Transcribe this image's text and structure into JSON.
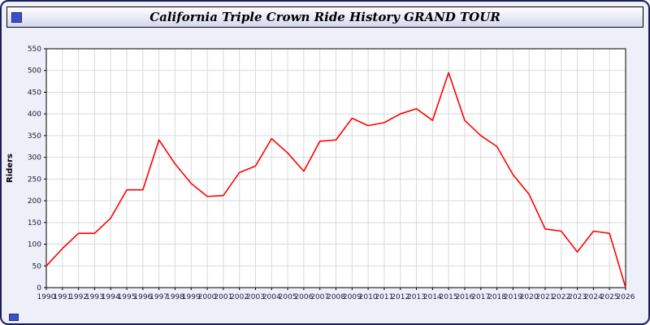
{
  "window": {
    "title": "California Triple Crown Ride History GRAND TOUR"
  },
  "colors": {
    "frame_border": "#1b1b5e",
    "frame_bg": "#eef0f9",
    "titlebar_gradient_top": "#ffffff",
    "titlebar_gradient_bottom": "#d3d7ee",
    "corner_square": "#3a50c8",
    "plot_bg": "#ffffff",
    "axis": "#000000",
    "tick_label": "#1a1a3a"
  },
  "chart_data": {
    "type": "line",
    "title": "California Triple Crown Ride History GRAND TOUR",
    "xlabel": "",
    "ylabel": "Riders",
    "ylim": [
      0,
      550
    ],
    "ytick_step": 50,
    "grid": true,
    "grid_color": "#d9d9d9",
    "line_color": "#ff0000",
    "legend": "none",
    "x": [
      1990,
      1991,
      1992,
      1993,
      1994,
      1995,
      1996,
      1997,
      1998,
      1999,
      2000,
      2001,
      2002,
      2003,
      2004,
      2005,
      2006,
      2007,
      2008,
      2009,
      2010,
      2011,
      2012,
      2013,
      2014,
      2015,
      2016,
      2017,
      2018,
      2019,
      2020,
      2021,
      2022,
      2023,
      2024,
      2025,
      2026
    ],
    "series": [
      {
        "name": "Riders",
        "values": [
          50,
          90,
          125,
          125,
          160,
          225,
          225,
          340,
          285,
          240,
          210,
          212,
          265,
          280,
          343,
          310,
          268,
          337,
          340,
          390,
          373,
          380,
          400,
          412,
          385,
          495,
          385,
          350,
          325,
          260,
          215,
          135,
          130,
          82,
          130,
          125,
          0
        ]
      }
    ]
  }
}
